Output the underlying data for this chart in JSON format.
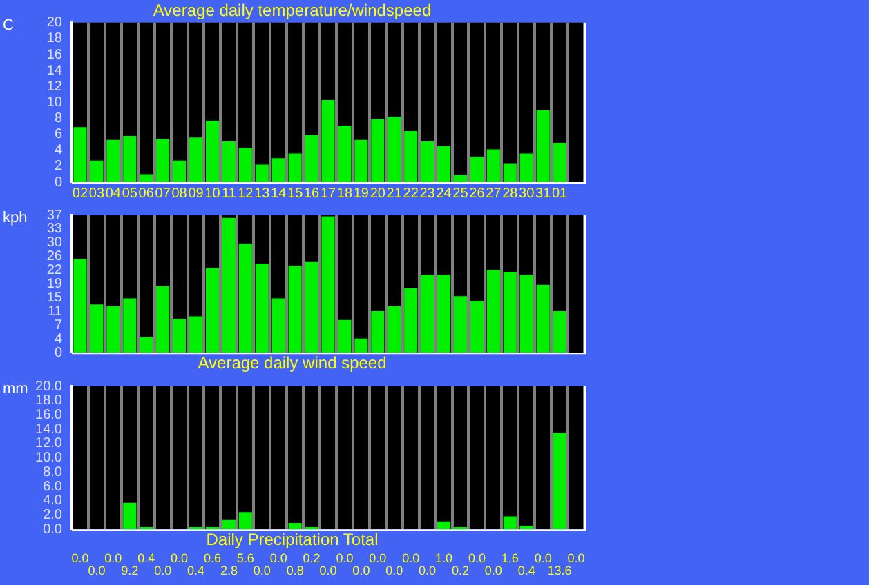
{
  "chart_data": [
    {
      "type": "bar",
      "title": "Average daily temperature/windspeed",
      "ylabel": "C",
      "categories": [
        "02",
        "03",
        "04",
        "05",
        "06",
        "07",
        "08",
        "09",
        "10",
        "11",
        "12",
        "13",
        "14",
        "15",
        "16",
        "17",
        "18",
        "19",
        "20",
        "21",
        "22",
        "23",
        "24",
        "25",
        "26",
        "27",
        "28",
        "30",
        "31",
        "01",
        null
      ],
      "values": [
        6.9,
        2.7,
        5.3,
        5.8,
        1.0,
        5.4,
        2.7,
        5.6,
        7.7,
        5.1,
        4.3,
        2.2,
        3.0,
        3.6,
        5.9,
        10.3,
        7.1,
        5.3,
        7.9,
        8.2,
        6.4,
        5.1,
        4.5,
        0.9,
        3.2,
        4.1,
        2.3,
        3.6,
        9.0,
        4.9,
        null
      ],
      "color": "#00f000",
      "ylim": [
        0,
        20
      ],
      "yticks": [
        0,
        2,
        4,
        6,
        8,
        10,
        12,
        14,
        16,
        18,
        20
      ],
      "grid": "x"
    },
    {
      "type": "bar",
      "title": "Average daily wind speed",
      "ylabel": "kph",
      "categories": [
        null,
        null,
        null,
        null,
        null,
        null,
        null,
        null,
        null,
        null,
        null,
        null,
        null,
        null,
        null,
        null,
        null,
        null,
        null,
        null,
        null,
        null,
        null,
        null,
        null,
        null,
        null,
        null,
        null,
        null,
        null
      ],
      "values": [
        25.2,
        13.0,
        12.5,
        14.6,
        4.2,
        17.9,
        9.1,
        9.8,
        22.8,
        36.3,
        29.4,
        24.0,
        14.6,
        23.4,
        24.4,
        36.7,
        8.8,
        3.8,
        11.2,
        12.5,
        17.3,
        21.0,
        21.0,
        15.2,
        13.9,
        22.3,
        21.7,
        21.0,
        18.3,
        11.2,
        null
      ],
      "color": "#00f000",
      "ylim": [
        0,
        37
      ],
      "yticks": [
        0,
        {
          "value": 3.7,
          "label": "4"
        },
        {
          "value": 7.4,
          "label": "7"
        },
        {
          "value": 11.1,
          "label": "11"
        },
        {
          "value": 14.8,
          "label": "15"
        },
        {
          "value": 18.5,
          "label": "19"
        },
        {
          "value": 22.2,
          "label": "22"
        },
        {
          "value": 25.9,
          "label": "26"
        },
        {
          "value": 29.6,
          "label": "30"
        },
        {
          "value": 33.3,
          "label": "33"
        },
        37
      ],
      "grid": "x",
      "tick_labels": "y"
    },
    {
      "type": "bar",
      "title": "Daily Precipitation Total",
      "ylabel": "mm",
      "categories": [
        null,
        null,
        null,
        null,
        null,
        null,
        null,
        null,
        null,
        null,
        null,
        null,
        null,
        null,
        null,
        null,
        null,
        null,
        null,
        null,
        null,
        null,
        null,
        null,
        null,
        null,
        null,
        null,
        null,
        null,
        null
      ],
      "values": [
        0,
        0,
        0,
        3.7,
        0.3,
        0,
        0,
        0.3,
        0.3,
        1.3,
        2.4,
        0,
        0,
        0.9,
        0.3,
        0,
        0,
        0,
        0,
        0,
        0,
        0,
        1.1,
        0.3,
        0,
        0,
        1.8,
        0.5,
        0,
        13.5,
        0
      ],
      "color": "#00f000",
      "ylim": [
        0,
        20
      ],
      "yticks": [
        {
          "value": 0,
          "label": "0.0"
        },
        {
          "value": 2,
          "label": "2.0"
        },
        {
          "value": 4,
          "label": "4.0"
        },
        {
          "value": 6,
          "label": "6.0"
        },
        {
          "value": 8,
          "label": "8.0"
        },
        {
          "value": 10,
          "label": "10.0"
        },
        {
          "value": 12,
          "label": "12.0"
        },
        {
          "value": 14,
          "label": "14.0"
        },
        {
          "value": 16,
          "label": "16.0"
        },
        {
          "value": 18,
          "label": "18.0"
        },
        {
          "value": 20,
          "label": "20.0"
        }
      ],
      "grid": "x",
      "tick_labels": "y",
      "annotations": [
        "0.0",
        "0.0",
        "0.0",
        "9.2",
        "0.4",
        "0.0",
        "0.0",
        "0.4",
        "0.6",
        "2.8",
        "5.6",
        "0.0",
        "0.0",
        "0.8",
        "0.2",
        "0.0",
        "0.0",
        "0.0",
        "0.0",
        "0.0",
        "0.0",
        "0.0",
        "1.0",
        "0.2",
        "0.0",
        "0.0",
        "1.6",
        "0.4",
        "0.0",
        "13.6",
        "0.0"
      ]
    }
  ]
}
